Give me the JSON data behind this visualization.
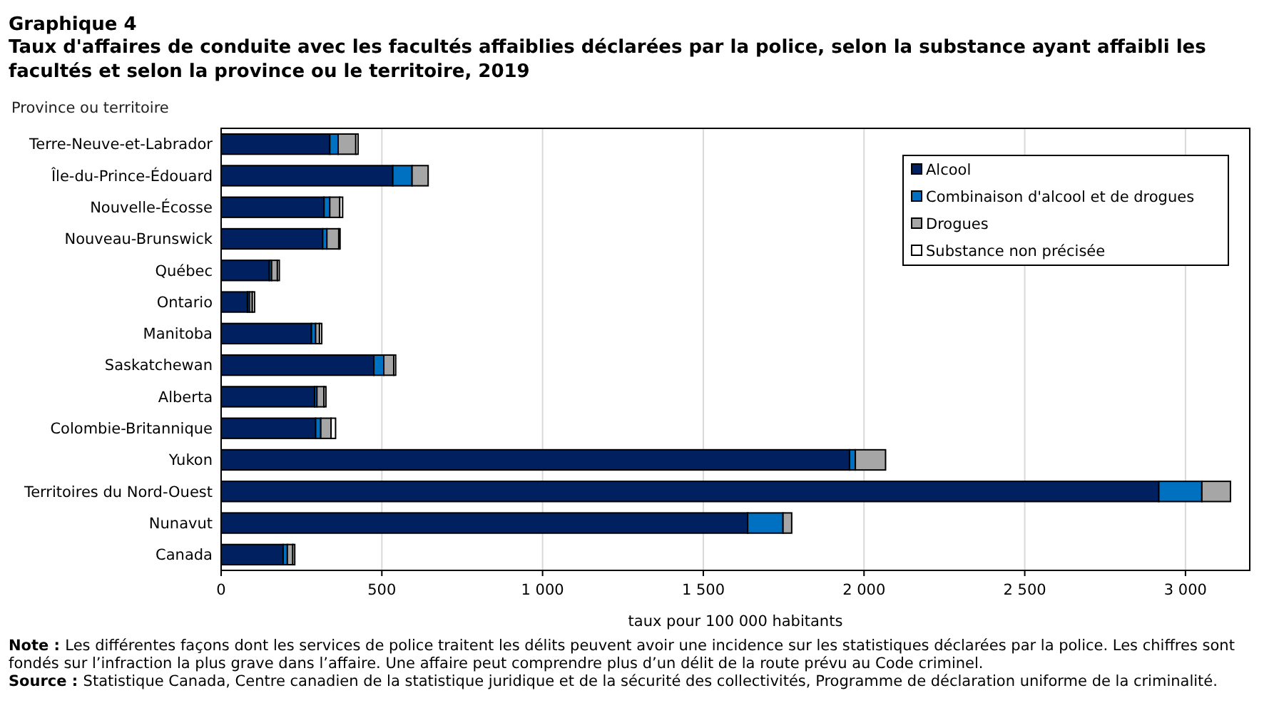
{
  "chart_data": {
    "type": "bar",
    "orientation": "horizontal",
    "stacked": true,
    "title": "Graphique 4",
    "subtitle": "Taux d'affaires de conduite avec les facultés affaiblies déclarées par la police, selon la substance ayant affaibli les facultés et selon la province ou le territoire, 2019",
    "ylabel": "Province ou territoire",
    "xlabel": "taux pour 100 000 habitants",
    "categories": [
      "Terre-Neuve-et-Labrador",
      "Île-du-Prince-Édouard",
      "Nouvelle-Écosse",
      "Nouveau-Brunswick",
      "Québec",
      "Ontario",
      "Manitoba",
      "Saskatchewan",
      "Alberta",
      "Colombie-Britannique",
      "Yukon",
      "Territoires du Nord-Ouest",
      "Nunavut",
      "Canada"
    ],
    "series": [
      {
        "name": "Alcool",
        "color": "#002060",
        "values": [
          338,
          534,
          320,
          316,
          150,
          82,
          281,
          475,
          291,
          294,
          1955,
          2917,
          1638,
          193
        ]
      },
      {
        "name": "Combinaison d'alcool et de drogues",
        "color": "#0070c0",
        "values": [
          26,
          60,
          18,
          13,
          7,
          6,
          13,
          31,
          7,
          16,
          18,
          134,
          110,
          13
        ]
      },
      {
        "name": "Drogues",
        "color": "#a6a6a6",
        "values": [
          55,
          50,
          31,
          37,
          18,
          9,
          12,
          31,
          22,
          32,
          94,
          89,
          27,
          17
        ]
      },
      {
        "name": "Substance non précisée",
        "color": "#ffffff",
        "values": [
          7,
          0,
          9,
          4,
          6,
          7,
          7,
          6,
          6,
          14,
          0,
          0,
          0,
          6
        ]
      }
    ],
    "xlim": [
      0,
      3200
    ],
    "xticks": [
      0,
      500,
      {
        "value": 1000,
        "label": "1 000"
      },
      {
        "value": 1500,
        "label": "1 500"
      },
      {
        "value": 2000,
        "label": "2 000"
      },
      {
        "value": 2500,
        "label": "2 500"
      },
      {
        "value": 3000,
        "label": "3 000"
      }
    ],
    "grid": "x",
    "legend": "top right",
    "annotations": [
      "Note : Les différentes façons dont les services de police traitent les délits peuvent avoir une incidence sur les statistiques déclarées par la police. Les chiffres sont fondés sur l’infraction la plus grave dans l’affaire. Une affaire peut comprendre plus d’un délit de la route prévu au Code criminel.",
      "Source : Statistique Canada, Centre canadien de la statistique juridique et de la sécurité des collectivités, Programme de déclaration uniforme de la criminalité."
    ]
  }
}
